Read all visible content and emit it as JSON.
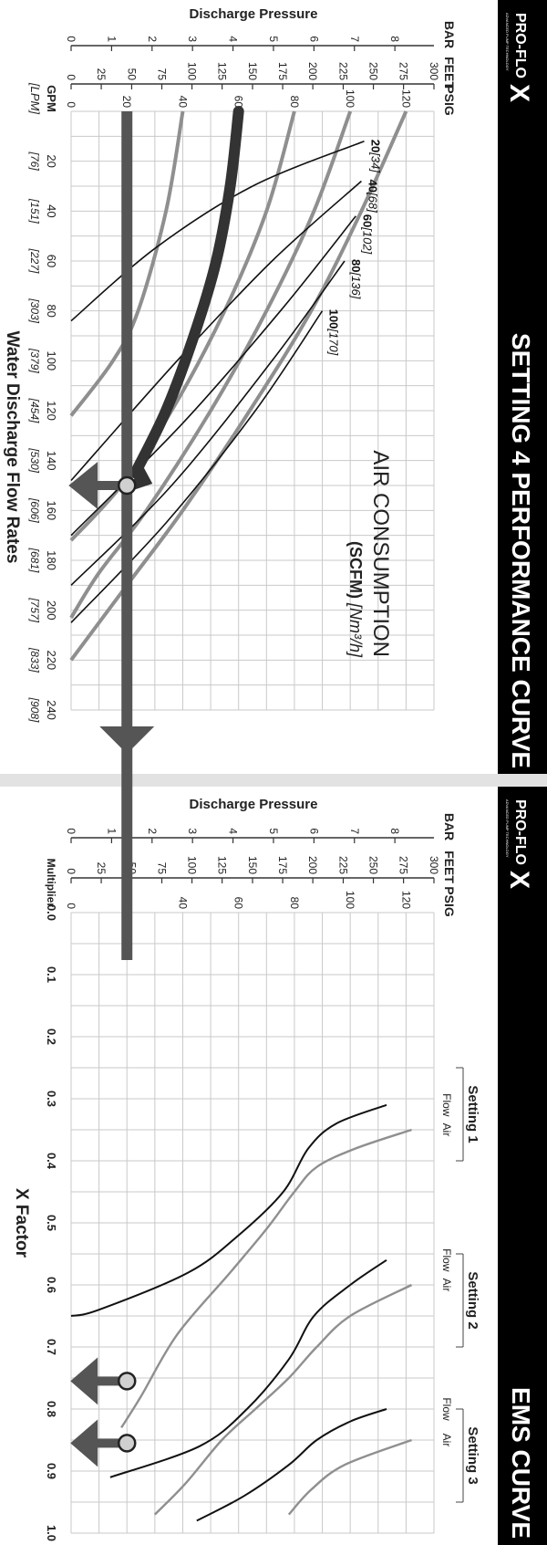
{
  "colors": {
    "header_bg": "#000000",
    "header_text": "#ffffff",
    "grid": "#c9c9c9",
    "curve_gray": "#8f8f8f",
    "curve_black": "#111111",
    "arrow": "#555555",
    "marker_fill": "#d0d0d0"
  },
  "brand": {
    "logo_text": "PRO-FLO",
    "logo_mark": "X",
    "logo_tagline": "ADVANCED PUMP TECHNOLOGY"
  },
  "panels": {
    "left_title": "SETTING 4 PERFORMANCE CURVE",
    "right_title": "EMS CURVE"
  },
  "chart_data": [
    {
      "type": "line",
      "title": "SETTING 4 PERFORMANCE CURVE",
      "xlabel": "Water Discharge Flow Rates",
      "ylabel": "Discharge Pressure",
      "x_unit_label": "GPM",
      "x_unit_label_alt": "[LPM]",
      "x_ticks": [
        {
          "v": 0,
          "label": ""
        },
        {
          "v": 20,
          "label": "20",
          "alt": "[76]"
        },
        {
          "v": 40,
          "label": "40",
          "alt": "[151]"
        },
        {
          "v": 60,
          "label": "60",
          "alt": "[227]"
        },
        {
          "v": 80,
          "label": "80",
          "alt": "[303]"
        },
        {
          "v": 100,
          "label": "100",
          "alt": "[379]"
        },
        {
          "v": 120,
          "label": "120",
          "alt": "[454]"
        },
        {
          "v": 140,
          "label": "140",
          "alt": "[530]"
        },
        {
          "v": 160,
          "label": "160",
          "alt": "[606]"
        },
        {
          "v": 180,
          "label": "180",
          "alt": "[681]"
        },
        {
          "v": 200,
          "label": "200",
          "alt": "[757]"
        },
        {
          "v": 220,
          "label": "220",
          "alt": "[833]"
        },
        {
          "v": 240,
          "label": "240",
          "alt": "[908]"
        }
      ],
      "xlim": [
        0,
        240
      ],
      "ylim": [
        0,
        130
      ],
      "pressure_scales": [
        {
          "name": "BAR",
          "ticks": [
            {
              "v": 0,
              "label": "0"
            },
            {
              "v": 14.5,
              "label": "1"
            },
            {
              "v": 29,
              "label": "2"
            },
            {
              "v": 43.5,
              "label": "3"
            },
            {
              "v": 58,
              "label": "4"
            },
            {
              "v": 72.5,
              "label": "5"
            },
            {
              "v": 87,
              "label": "6"
            },
            {
              "v": 101.5,
              "label": "7"
            },
            {
              "v": 116,
              "label": "8"
            }
          ]
        },
        {
          "name": "FEET",
          "ticks": [
            {
              "v": 0,
              "label": "0"
            },
            {
              "v": 10.8,
              "label": "25"
            },
            {
              "v": 21.7,
              "label": "50"
            },
            {
              "v": 32.5,
              "label": "75"
            },
            {
              "v": 43.3,
              "label": "100"
            },
            {
              "v": 54.1,
              "label": "125"
            },
            {
              "v": 65,
              "label": "150"
            },
            {
              "v": 75.8,
              "label": "175"
            },
            {
              "v": 86.6,
              "label": "200"
            },
            {
              "v": 97.5,
              "label": "225"
            },
            {
              "v": 108.3,
              "label": "250"
            },
            {
              "v": 119.1,
              "label": "275"
            },
            {
              "v": 130,
              "label": "300"
            }
          ]
        },
        {
          "name": "PSIG",
          "ticks": [
            {
              "v": 0,
              "label": "0"
            },
            {
              "v": 20,
              "label": "20"
            },
            {
              "v": 40,
              "label": "40"
            },
            {
              "v": 60,
              "label": "60"
            },
            {
              "v": 80,
              "label": "80"
            },
            {
              "v": 100,
              "label": "100"
            },
            {
              "v": 120,
              "label": "120"
            }
          ]
        }
      ],
      "annotation": {
        "line1": "AIR CONSUMPTION",
        "line2_bold": "(SCFM)",
        "line2_rest": "[Nm³/h]"
      },
      "supply_pressure_curves": [
        {
          "psig": 120,
          "points": [
            [
              0,
              120
            ],
            [
              40,
              104
            ],
            [
              80,
              86
            ],
            [
              120,
              64
            ],
            [
              160,
              40
            ],
            [
              190,
              20
            ],
            [
              220,
              0
            ]
          ]
        },
        {
          "psig": 100,
          "points": [
            [
              0,
              100
            ],
            [
              40,
              87
            ],
            [
              80,
              70
            ],
            [
              120,
              50
            ],
            [
              160,
              27
            ],
            [
              185,
              10
            ],
            [
              203,
              0
            ]
          ]
        },
        {
          "psig": 80,
          "points": [
            [
              0,
              80
            ],
            [
              40,
              70
            ],
            [
              80,
              55
            ],
            [
              120,
              36
            ],
            [
              150,
              18
            ],
            [
              172,
              0
            ]
          ]
        },
        {
          "psig": 40,
          "points": [
            [
              0,
              40
            ],
            [
              40,
              34
            ],
            [
              80,
              24
            ],
            [
              100,
              15
            ],
            [
              122,
              0
            ]
          ]
        }
      ],
      "air_consumption_curves": [
        {
          "scfm": "20",
          "nm3h": "[34]",
          "points": [
            [
              12,
              105
            ],
            [
              30,
              65
            ],
            [
              55,
              30
            ],
            [
              84,
              0
            ]
          ]
        },
        {
          "scfm": "40",
          "nm3h": "[68]",
          "points": [
            [
              28,
              104
            ],
            [
              60,
              72
            ],
            [
              100,
              38
            ],
            [
              148,
              0
            ]
          ]
        },
        {
          "scfm": "60",
          "nm3h": "[102]",
          "points": [
            [
              42,
              102
            ],
            [
              80,
              75
            ],
            [
              125,
              40
            ],
            [
              170,
              0
            ]
          ]
        },
        {
          "scfm": "80",
          "nm3h": "[136]",
          "points": [
            [
              60,
              98
            ],
            [
              100,
              72
            ],
            [
              150,
              36
            ],
            [
              190,
              0
            ]
          ]
        },
        {
          "scfm": "100",
          "nm3h": "[170]",
          "points": [
            [
              80,
              90
            ],
            [
              120,
              66
            ],
            [
              165,
              34
            ],
            [
              205,
              0
            ]
          ]
        }
      ],
      "highlighted_curve": {
        "psig": 60,
        "points": [
          [
            0,
            60
          ],
          [
            30,
            57
          ],
          [
            60,
            52
          ],
          [
            90,
            44
          ],
          [
            120,
            34
          ],
          [
            145,
            23
          ]
        ]
      },
      "operating_point": {
        "x": 150,
        "y": 20
      },
      "air_operating_point": {
        "x": 140,
        "y": 20
      }
    },
    {
      "type": "line",
      "title": "EMS CURVE",
      "xlabel": "X Factor",
      "x_unit_label": "Multiplier",
      "xlim": [
        0,
        1.0
      ],
      "ylim": [
        0,
        130
      ],
      "x_ticks": [
        {
          "v": 0,
          "label": "0.0"
        },
        {
          "v": 0.1,
          "label": "0.1"
        },
        {
          "v": 0.2,
          "label": "0.2"
        },
        {
          "v": 0.3,
          "label": "0.3"
        },
        {
          "v": 0.4,
          "label": "0.4"
        },
        {
          "v": 0.5,
          "label": "0.5"
        },
        {
          "v": 0.6,
          "label": "0.6"
        },
        {
          "v": 0.7,
          "label": "0.7"
        },
        {
          "v": 0.8,
          "label": "0.8"
        },
        {
          "v": 0.9,
          "label": "0.9"
        },
        {
          "v": 1.0,
          "label": "1.0"
        }
      ],
      "settings": [
        {
          "name": "Setting 1",
          "flow_label": "Flow",
          "air_label": "Air",
          "flow": [
            [
              0.31,
              113
            ],
            [
              0.34,
              95
            ],
            [
              0.38,
              85
            ],
            [
              0.45,
              76
            ],
            [
              0.52,
              60
            ],
            [
              0.58,
              42
            ],
            [
              0.64,
              10
            ],
            [
              0.65,
              0
            ]
          ],
          "air": [
            [
              0.35,
              122
            ],
            [
              0.38,
              102
            ],
            [
              0.41,
              88
            ],
            [
              0.45,
              80
            ],
            [
              0.51,
              70
            ],
            [
              0.58,
              57
            ],
            [
              0.68,
              38
            ],
            [
              0.78,
              25
            ],
            [
              0.83,
              18
            ]
          ]
        },
        {
          "name": "Setting 2",
          "flow_label": "Flow",
          "air_label": "Air",
          "flow": [
            [
              0.56,
              113
            ],
            [
              0.6,
              100
            ],
            [
              0.65,
              87
            ],
            [
              0.72,
              78
            ],
            [
              0.8,
              63
            ],
            [
              0.86,
              46
            ],
            [
              0.91,
              14
            ]
          ],
          "air": [
            [
              0.6,
              122
            ],
            [
              0.65,
              100
            ],
            [
              0.7,
              88
            ],
            [
              0.75,
              78
            ],
            [
              0.8,
              66
            ],
            [
              0.85,
              54
            ],
            [
              0.92,
              41
            ],
            [
              0.97,
              30
            ]
          ]
        },
        {
          "name": "Setting 3",
          "flow_label": "Flow",
          "air_label": "Air",
          "flow": [
            [
              0.8,
              113
            ],
            [
              0.82,
              100
            ],
            [
              0.85,
              88
            ],
            [
              0.89,
              78
            ],
            [
              0.94,
              62
            ],
            [
              0.98,
              45
            ]
          ],
          "air": [
            [
              0.85,
              122
            ],
            [
              0.89,
              98
            ],
            [
              0.93,
              86
            ],
            [
              0.97,
              78
            ]
          ]
        }
      ],
      "operating_points": [
        {
          "x": 0.855,
          "y": 20
        },
        {
          "x": 0.755,
          "y": 20
        }
      ]
    }
  ]
}
